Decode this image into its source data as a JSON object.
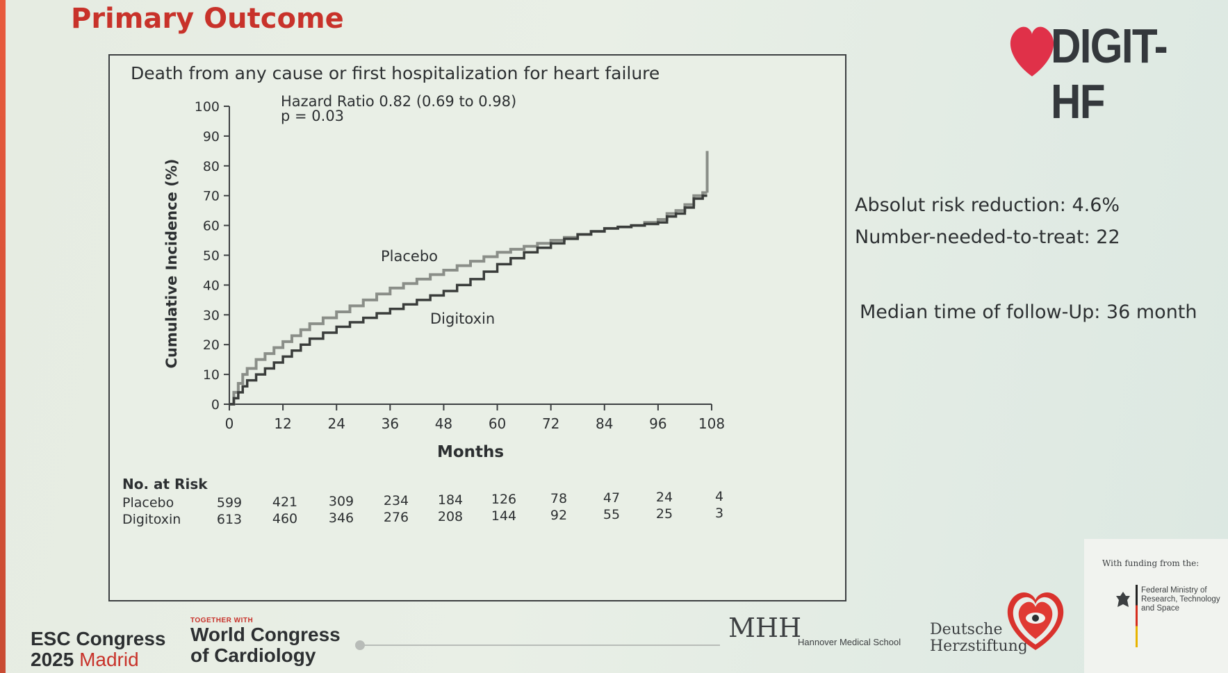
{
  "slide": {
    "title": "Primary Outcome",
    "brand": "DIGIT-HF"
  },
  "notes": [
    "Absolut risk reduction: 4.6%",
    "Number-needed-to-treat: 22",
    "Median time of follow-Up: 36 month"
  ],
  "chart_data": {
    "type": "line",
    "title": "Death from any cause or first hospitalization for heart failure",
    "annotation": [
      "Hazard Ratio 0.82 (0.69  to  0.98)",
      "p = 0.03"
    ],
    "xlabel": "Months",
    "ylabel": "Cumulative Incidence (%)",
    "xlim": [
      0,
      108
    ],
    "ylim": [
      0,
      100
    ],
    "xticks": [
      0,
      12,
      24,
      36,
      48,
      60,
      72,
      84,
      96,
      108
    ],
    "yticks": [
      0,
      10,
      20,
      30,
      40,
      50,
      60,
      70,
      80,
      90,
      100
    ],
    "series": [
      {
        "name": "Placebo",
        "color": "#8a8e88",
        "x": [
          0,
          1,
          2,
          3,
          4,
          6,
          8,
          10,
          12,
          14,
          16,
          18,
          21,
          24,
          27,
          30,
          33,
          36,
          39,
          42,
          45,
          48,
          51,
          54,
          57,
          60,
          63,
          66,
          69,
          72,
          75,
          78,
          81,
          84,
          87,
          90,
          93,
          96,
          98,
          100,
          102,
          104,
          106
        ],
        "y": [
          0,
          4,
          7,
          10,
          12,
          15,
          17,
          19,
          21,
          23,
          25,
          27,
          29,
          31,
          33,
          35,
          37,
          39,
          40.5,
          42,
          43.5,
          45,
          46.5,
          48,
          49.5,
          51,
          52,
          53,
          54,
          55,
          56,
          57,
          58,
          59,
          59.5,
          60,
          61,
          62,
          64,
          65,
          67,
          70,
          71
        ]
      },
      {
        "name": "Digitoxin",
        "color": "#3a3d3b",
        "x": [
          0,
          1,
          2,
          3,
          4,
          6,
          8,
          10,
          12,
          14,
          16,
          18,
          21,
          24,
          27,
          30,
          33,
          36,
          39,
          42,
          45,
          48,
          51,
          54,
          57,
          60,
          63,
          66,
          69,
          72,
          75,
          78,
          81,
          84,
          87,
          90,
          93,
          96,
          98,
          100,
          102,
          104,
          106
        ],
        "y": [
          0,
          2,
          4,
          6,
          8,
          10,
          12,
          14,
          16,
          18,
          20,
          22,
          24,
          26,
          27.5,
          29,
          30.5,
          32,
          33.5,
          35,
          36.5,
          38,
          40,
          42,
          44.5,
          47,
          49,
          51,
          52.5,
          54,
          55.5,
          57,
          58,
          59,
          59.5,
          60,
          60.5,
          61,
          63,
          64,
          66,
          69,
          70
        ]
      }
    ],
    "final_spike": {
      "x": 107,
      "y_from": 71,
      "y_to": 85
    },
    "at_risk": {
      "label": "No. at Risk",
      "rows": [
        {
          "name": "Placebo",
          "values": [
            "599",
            "421",
            "309",
            "234",
            "184",
            "126",
            "78",
            "47",
            "24",
            "4"
          ]
        },
        {
          "name": "Digitoxin",
          "values": [
            "613",
            "460",
            "346",
            "276",
            "208",
            "144",
            "92",
            "55",
            "25",
            "3"
          ]
        }
      ]
    }
  },
  "footer": {
    "congress_line1": "ESC Congress",
    "congress_year": "2025",
    "congress_city": "Madrid",
    "together": "TOGETHER WITH",
    "wcc_line1": "World Congress",
    "wcc_line2": "of Cardiology",
    "mhh_logo": "MHH",
    "mhh_name": "Hannover Medical School",
    "dhs_line1": "Deutsche",
    "dhs_line2": "Herzstiftung",
    "funding_label": "With funding from the:",
    "ministry": "Federal Ministry of Research, Technology and Space"
  }
}
